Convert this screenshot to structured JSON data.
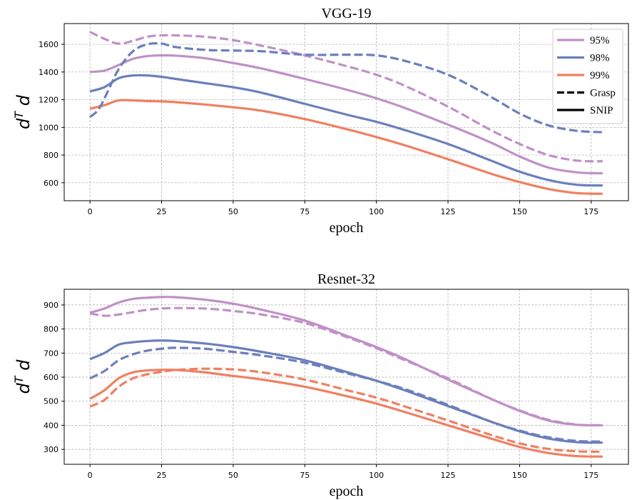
{
  "chart_data": [
    {
      "type": "line",
      "title": "VGG-19",
      "xlabel": "epoch",
      "ylabel": "d^T d",
      "xlim": [
        -9,
        188
      ],
      "ylim": [
        470,
        1750
      ],
      "xticks": [
        0,
        25,
        50,
        75,
        100,
        125,
        150,
        175
      ],
      "yticks": [
        600,
        800,
        1000,
        1200,
        1400,
        1600
      ],
      "grid": true,
      "legend": {
        "position": "top-right",
        "entries": [
          {
            "label": "95%",
            "color": "#c090c6",
            "style": "solid"
          },
          {
            "label": "98%",
            "color": "#6b7fbc",
            "style": "solid"
          },
          {
            "label": "99%",
            "color": "#f07f60",
            "style": "solid"
          },
          {
            "label": "Grasp",
            "color": "#000000",
            "style": "dashed"
          },
          {
            "label": "SNIP",
            "color": "#000000",
            "style": "solid"
          }
        ]
      },
      "series": [
        {
          "name": "95% SNIP",
          "color": "#c090c6",
          "style": "solid",
          "x": [
            0,
            5,
            10,
            15,
            20,
            25,
            30,
            40,
            50,
            60,
            75,
            90,
            100,
            110,
            125,
            140,
            150,
            160,
            170,
            179
          ],
          "y": [
            1400,
            1410,
            1450,
            1495,
            1515,
            1520,
            1518,
            1500,
            1465,
            1425,
            1350,
            1270,
            1210,
            1140,
            1020,
            890,
            790,
            710,
            675,
            668
          ]
        },
        {
          "name": "98% SNIP",
          "color": "#6b7fbc",
          "style": "solid",
          "x": [
            0,
            5,
            10,
            15,
            20,
            25,
            30,
            40,
            50,
            60,
            75,
            90,
            100,
            110,
            125,
            140,
            150,
            160,
            170,
            179
          ],
          "y": [
            1260,
            1290,
            1355,
            1375,
            1375,
            1365,
            1350,
            1320,
            1290,
            1250,
            1170,
            1090,
            1040,
            980,
            880,
            760,
            680,
            620,
            585,
            580
          ]
        },
        {
          "name": "99% SNIP",
          "color": "#f07f60",
          "style": "solid",
          "x": [
            0,
            5,
            10,
            15,
            20,
            25,
            30,
            40,
            50,
            60,
            75,
            90,
            100,
            110,
            125,
            140,
            150,
            160,
            170,
            179
          ],
          "y": [
            1135,
            1160,
            1195,
            1195,
            1190,
            1188,
            1182,
            1165,
            1145,
            1120,
            1060,
            985,
            930,
            870,
            770,
            665,
            605,
            555,
            525,
            520
          ]
        },
        {
          "name": "95% Grasp",
          "color": "#c090c6",
          "style": "dashed",
          "x": [
            0,
            5,
            10,
            15,
            20,
            25,
            30,
            40,
            50,
            60,
            75,
            90,
            100,
            110,
            125,
            140,
            150,
            160,
            170,
            179
          ],
          "y": [
            1690,
            1640,
            1605,
            1625,
            1655,
            1665,
            1665,
            1655,
            1630,
            1590,
            1520,
            1440,
            1380,
            1300,
            1150,
            980,
            880,
            800,
            760,
            755
          ]
        },
        {
          "name": "98% Grasp",
          "color": "#6b7fbc",
          "style": "dashed",
          "x": [
            0,
            3,
            6,
            10,
            15,
            20,
            25,
            30,
            40,
            50,
            60,
            75,
            90,
            100,
            110,
            125,
            140,
            150,
            160,
            170,
            179
          ],
          "y": [
            1075,
            1130,
            1250,
            1420,
            1550,
            1600,
            1605,
            1580,
            1560,
            1555,
            1550,
            1525,
            1525,
            1520,
            1480,
            1380,
            1220,
            1100,
            1015,
            975,
            965
          ]
        }
      ]
    },
    {
      "type": "line",
      "title": "Resnet-32",
      "xlabel": "epoch",
      "ylabel": "d^T d",
      "xlim": [
        -9,
        188
      ],
      "ylim": [
        238,
        965
      ],
      "xticks": [
        0,
        25,
        50,
        75,
        100,
        125,
        150,
        175
      ],
      "yticks": [
        300,
        400,
        500,
        600,
        700,
        800,
        900
      ],
      "grid": true,
      "series": [
        {
          "name": "95% SNIP",
          "color": "#c090c6",
          "style": "solid",
          "x": [
            0,
            5,
            10,
            15,
            20,
            25,
            30,
            40,
            50,
            60,
            75,
            90,
            100,
            110,
            125,
            140,
            150,
            160,
            170,
            179
          ],
          "y": [
            868,
            885,
            910,
            925,
            930,
            933,
            932,
            922,
            905,
            880,
            835,
            770,
            725,
            675,
            590,
            510,
            460,
            420,
            402,
            400
          ]
        },
        {
          "name": "98% SNIP",
          "color": "#6b7fbc",
          "style": "solid",
          "x": [
            0,
            5,
            10,
            15,
            20,
            25,
            30,
            40,
            50,
            60,
            75,
            90,
            100,
            110,
            125,
            140,
            150,
            160,
            170,
            179
          ],
          "y": [
            675,
            700,
            735,
            745,
            750,
            752,
            750,
            740,
            725,
            705,
            670,
            620,
            585,
            545,
            480,
            415,
            375,
            345,
            330,
            328
          ]
        },
        {
          "name": "99% SNIP",
          "color": "#f07f60",
          "style": "solid",
          "x": [
            0,
            5,
            10,
            15,
            20,
            25,
            30,
            40,
            50,
            60,
            75,
            90,
            100,
            110,
            125,
            140,
            150,
            160,
            170,
            179
          ],
          "y": [
            510,
            545,
            595,
            620,
            628,
            630,
            630,
            620,
            605,
            590,
            560,
            520,
            490,
            455,
            400,
            345,
            310,
            285,
            272,
            270
          ]
        },
        {
          "name": "95% Grasp",
          "color": "#c090c6",
          "style": "dashed",
          "x": [
            0,
            5,
            10,
            15,
            20,
            25,
            30,
            40,
            50,
            60,
            75,
            90,
            100,
            110,
            125,
            140,
            150,
            160,
            170,
            179
          ],
          "y": [
            865,
            855,
            860,
            870,
            880,
            885,
            887,
            885,
            875,
            860,
            825,
            765,
            720,
            670,
            595,
            510,
            462,
            423,
            403,
            400
          ]
        },
        {
          "name": "98% Grasp",
          "color": "#6b7fbc",
          "style": "dashed",
          "x": [
            0,
            5,
            10,
            15,
            20,
            25,
            30,
            40,
            50,
            60,
            75,
            90,
            100,
            110,
            125,
            140,
            150,
            160,
            170,
            179
          ],
          "y": [
            595,
            625,
            670,
            695,
            710,
            718,
            722,
            718,
            705,
            690,
            660,
            615,
            585,
            550,
            485,
            415,
            378,
            350,
            335,
            332
          ]
        },
        {
          "name": "99% Grasp",
          "color": "#f07f60",
          "style": "dashed",
          "x": [
            0,
            5,
            10,
            15,
            20,
            25,
            30,
            40,
            50,
            60,
            75,
            90,
            100,
            110,
            125,
            140,
            150,
            160,
            170,
            179
          ],
          "y": [
            478,
            505,
            560,
            595,
            612,
            622,
            630,
            635,
            632,
            620,
            590,
            545,
            515,
            478,
            420,
            360,
            325,
            302,
            292,
            290
          ]
        }
      ]
    }
  ]
}
